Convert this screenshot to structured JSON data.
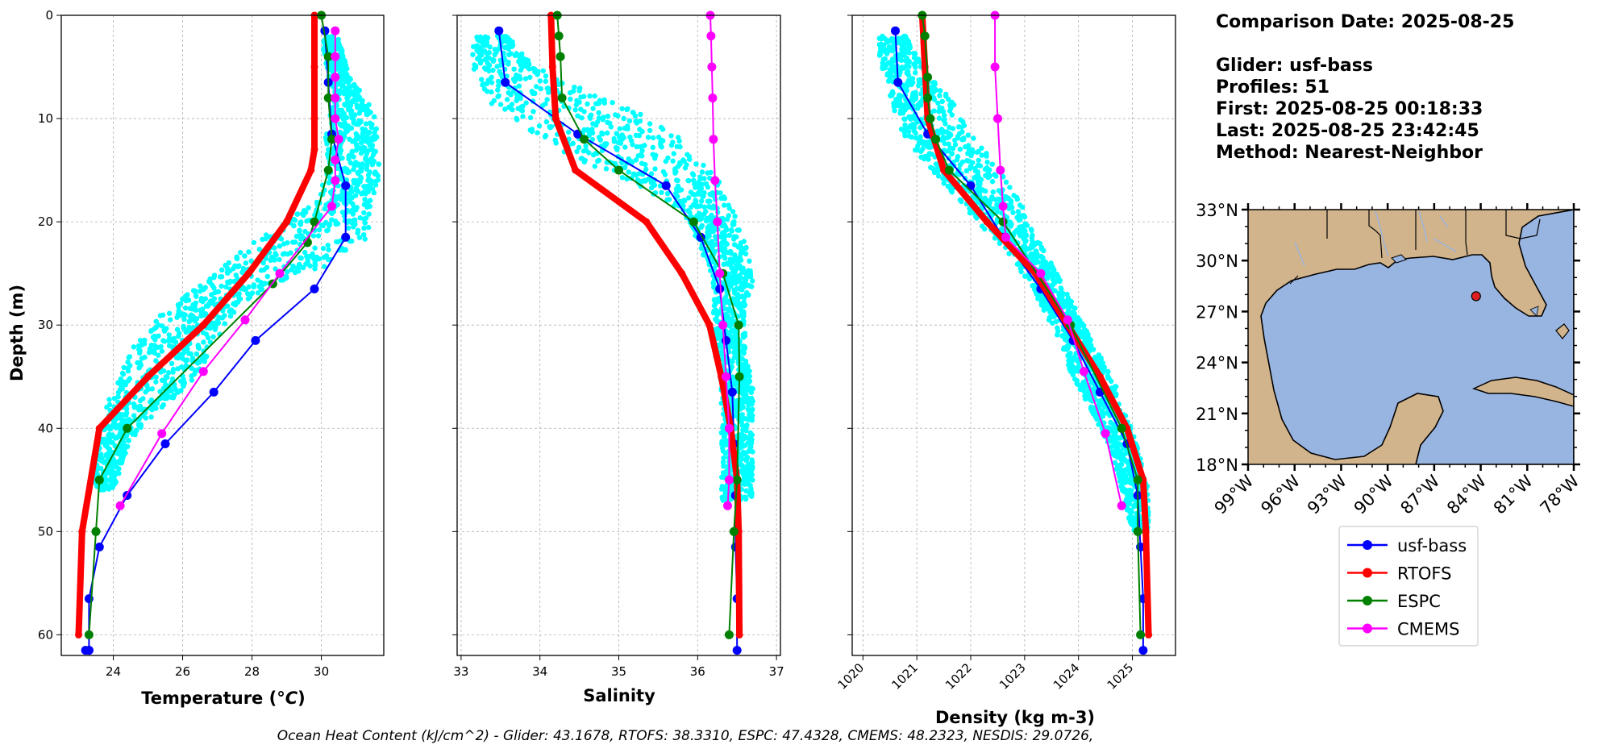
{
  "header": {
    "comparison_date": "Comparison Date: 2025-08-25",
    "glider": "Glider: usf-bass",
    "profiles": "Profiles: 51",
    "first": "First: 2025-08-25 00:18:33",
    "last": "Last: 2025-08-25 23:42:45",
    "method": "Method: Nearest-Neighbor"
  },
  "footer": "Ocean Heat Content (kJ/cm^2) - Glider: 43.1678,  RTOFS: 38.3310,  ESPC: 47.4328,  CMEMS: 48.2323,  NESDIS: 29.0726,",
  "colors": {
    "glider_scatter": "#00ffff",
    "usf_bass": "#0000ff",
    "rtofs": "#ff0000",
    "espc": "#008000",
    "cmems": "#ff00ff",
    "land": "#d2b48c",
    "ocean": "#98b4e0",
    "grid": "#b0b0b0"
  },
  "legend": [
    "usf-bass",
    "RTOFS",
    "ESPC",
    "CMEMS"
  ],
  "chart_data": [
    {
      "type": "line",
      "id": "temperature",
      "xlabel": "Temperature (°C)",
      "ylabel": "Depth (m)",
      "xlim": [
        22.5,
        31.8
      ],
      "ylim": [
        62,
        0
      ],
      "xticks": [
        24,
        26,
        28,
        30
      ],
      "yticks": [
        0,
        10,
        20,
        30,
        40,
        50,
        60
      ],
      "grid": true,
      "scatter_band": [
        [
          2,
          30.0,
          30.5
        ],
        [
          6,
          30.2,
          30.8
        ],
        [
          8,
          30.4,
          31.3
        ],
        [
          10,
          30.2,
          31.6
        ],
        [
          12,
          30.1,
          31.6
        ],
        [
          14,
          30.2,
          31.7
        ],
        [
          16,
          30.1,
          31.7
        ],
        [
          18,
          29.8,
          31.5
        ],
        [
          20,
          29.0,
          31.4
        ],
        [
          22,
          28.0,
          31.3
        ],
        [
          24,
          27.3,
          30.4
        ],
        [
          26,
          26.6,
          28.6
        ],
        [
          28,
          25.7,
          27.8
        ],
        [
          30,
          25.0,
          27.3
        ],
        [
          32,
          24.6,
          26.8
        ],
        [
          34,
          24.3,
          26.6
        ],
        [
          36,
          24.0,
          26.1
        ],
        [
          38,
          23.8,
          25.4
        ],
        [
          40,
          23.6,
          24.8
        ],
        [
          42,
          23.5,
          24.4
        ],
        [
          44,
          23.4,
          24.2
        ],
        [
          46,
          23.5,
          24.0
        ]
      ],
      "series": [
        {
          "name": "usf-bass",
          "x": [
            30.1,
            30.2,
            30.3,
            30.7,
            30.7,
            29.8,
            28.1,
            26.9,
            25.5,
            24.4,
            23.6,
            23.3,
            23.3,
            23.3,
            23.2
          ],
          "y": [
            1.5,
            6.5,
            11.5,
            16.5,
            21.5,
            26.5,
            31.5,
            36.5,
            41.5,
            46.5,
            51.5,
            56.5,
            61.5,
            61.5,
            61.5
          ]
        },
        {
          "name": "RTOFS",
          "x": [
            29.8,
            29.8,
            29.8,
            29.8,
            29.7,
            29.0,
            27.9,
            26.6,
            25.0,
            23.6,
            23.1,
            23.0
          ],
          "y": [
            0,
            5,
            10,
            13,
            15,
            20,
            25,
            30,
            35,
            40,
            50,
            60
          ]
        },
        {
          "name": "ESPC",
          "x": [
            30.0,
            30.2,
            30.2,
            30.3,
            30.2,
            29.8,
            29.6,
            28.6,
            24.4,
            23.6,
            23.5,
            23.3
          ],
          "y": [
            0,
            4,
            8,
            12,
            15,
            20,
            22,
            26,
            40,
            45,
            50,
            60
          ]
        },
        {
          "name": "CMEMS",
          "x": [
            30.4,
            30.4,
            30.4,
            30.4,
            30.4,
            30.5,
            30.4,
            30.4,
            30.3,
            28.8,
            27.8,
            26.6,
            25.4,
            24.2
          ],
          "y": [
            1.5,
            4,
            6,
            8,
            10,
            12,
            14,
            16,
            18.5,
            25,
            29.5,
            34.5,
            40.5,
            47.5
          ]
        }
      ]
    },
    {
      "type": "line",
      "id": "salinity",
      "xlabel": "Salinity",
      "xlim": [
        32.95,
        37.05
      ],
      "ylim": [
        62,
        0
      ],
      "xticks": [
        33,
        34,
        35,
        36,
        37
      ],
      "yticks": [
        0,
        10,
        20,
        30,
        40,
        50,
        60
      ],
      "grid": true,
      "scatter_band": [
        [
          2,
          33.2,
          33.6
        ],
        [
          4,
          33.1,
          33.8
        ],
        [
          6,
          33.2,
          34.2
        ],
        [
          8,
          33.3,
          34.8
        ],
        [
          10,
          33.6,
          35.4
        ],
        [
          12,
          34.0,
          35.8
        ],
        [
          14,
          34.5,
          36.0
        ],
        [
          16,
          35.1,
          36.3
        ],
        [
          18,
          35.6,
          36.4
        ],
        [
          20,
          35.9,
          36.5
        ],
        [
          22,
          36.0,
          36.6
        ],
        [
          24,
          36.1,
          36.7
        ],
        [
          26,
          36.2,
          36.7
        ],
        [
          28,
          36.2,
          36.6
        ],
        [
          30,
          36.2,
          36.6
        ],
        [
          32,
          36.2,
          36.6
        ],
        [
          36,
          36.3,
          36.7
        ],
        [
          40,
          36.3,
          36.7
        ],
        [
          44,
          36.3,
          36.7
        ],
        [
          47,
          36.3,
          36.7
        ]
      ],
      "series": [
        {
          "name": "usf-bass",
          "x": [
            33.48,
            33.56,
            34.48,
            35.6,
            36.04,
            36.28,
            36.36,
            36.44,
            36.46,
            36.48,
            36.48,
            36.5,
            36.5
          ],
          "y": [
            1.5,
            6.5,
            11.5,
            16.5,
            21.5,
            26.5,
            31.5,
            36.5,
            41.5,
            46.5,
            51.5,
            56.5,
            61.5
          ]
        },
        {
          "name": "RTOFS",
          "x": [
            34.14,
            34.16,
            34.2,
            34.45,
            35.35,
            35.8,
            36.15,
            36.3,
            36.42,
            36.5,
            36.52,
            36.53
          ],
          "y": [
            0,
            5,
            10,
            15,
            20,
            25,
            30,
            35,
            40,
            45,
            50,
            60
          ]
        },
        {
          "name": "ESPC",
          "x": [
            34.22,
            34.24,
            34.26,
            34.28,
            34.56,
            35.0,
            35.95,
            36.32,
            36.52,
            36.53,
            36.5,
            36.46,
            36.4
          ],
          "y": [
            0,
            2,
            4,
            8,
            12,
            15,
            20,
            25,
            30,
            35,
            45,
            50,
            60
          ]
        },
        {
          "name": "CMEMS",
          "x": [
            36.16,
            36.17,
            36.18,
            36.19,
            36.2,
            36.22,
            36.25,
            36.28,
            36.32,
            36.36,
            36.4,
            36.4,
            36.38
          ],
          "y": [
            0,
            2,
            5,
            8,
            12,
            16,
            20,
            25,
            30,
            35,
            40,
            45,
            47.5
          ]
        }
      ]
    },
    {
      "type": "line",
      "id": "density",
      "xlabel": "Density (kg m-3)",
      "xlim": [
        1019.8,
        1025.8
      ],
      "ylim": [
        62,
        0
      ],
      "xticks": [
        1020,
        1021,
        1022,
        1023,
        1024,
        1025
      ],
      "yticks": [
        0,
        10,
        20,
        30,
        40,
        50,
        60
      ],
      "grid": true,
      "scatter_band": [
        [
          2,
          1020.3,
          1020.8
        ],
        [
          4,
          1020.3,
          1021.0
        ],
        [
          6,
          1020.4,
          1021.3
        ],
        [
          8,
          1020.5,
          1021.6
        ],
        [
          10,
          1020.6,
          1021.9
        ],
        [
          12,
          1020.8,
          1022.1
        ],
        [
          14,
          1021.1,
          1022.4
        ],
        [
          16,
          1021.4,
          1022.7
        ],
        [
          18,
          1021.8,
          1022.9
        ],
        [
          20,
          1022.1,
          1023.1
        ],
        [
          22,
          1022.5,
          1023.3
        ],
        [
          24,
          1022.8,
          1023.5
        ],
        [
          26,
          1023.1,
          1023.7
        ],
        [
          28,
          1023.3,
          1023.9
        ],
        [
          30,
          1023.5,
          1024.1
        ],
        [
          32,
          1023.7,
          1024.3
        ],
        [
          34,
          1023.8,
          1024.5
        ],
        [
          36,
          1024.0,
          1024.7
        ],
        [
          38,
          1024.2,
          1024.8
        ],
        [
          40,
          1024.4,
          1025.0
        ],
        [
          42,
          1024.6,
          1025.1
        ],
        [
          44,
          1024.7,
          1025.2
        ],
        [
          46,
          1024.8,
          1025.3
        ],
        [
          48,
          1024.9,
          1025.3
        ],
        [
          50,
          1025.0,
          1025.3
        ]
      ],
      "series": [
        {
          "name": "usf-bass",
          "x": [
            1020.6,
            1020.65,
            1021.2,
            1022.0,
            1022.6,
            1023.3,
            1023.9,
            1024.4,
            1024.9,
            1025.1,
            1025.15,
            1025.2,
            1025.2
          ],
          "y": [
            1.5,
            6.5,
            11.5,
            16.5,
            21.5,
            26.5,
            31.5,
            36.5,
            41.5,
            46.5,
            51.5,
            56.5,
            61.5
          ]
        },
        {
          "name": "RTOFS",
          "x": [
            1021.1,
            1021.15,
            1021.2,
            1021.5,
            1022.3,
            1023.2,
            1023.8,
            1024.4,
            1024.9,
            1025.2,
            1025.25,
            1025.3
          ],
          "y": [
            0,
            5,
            10,
            15,
            20,
            25,
            30,
            35,
            40,
            45,
            50,
            60
          ]
        },
        {
          "name": "ESPC",
          "x": [
            1021.1,
            1021.15,
            1021.2,
            1021.2,
            1021.25,
            1021.35,
            1021.6,
            1022.6,
            1023.85,
            1024.8,
            1025.1,
            1025.1,
            1025.15
          ],
          "y": [
            0,
            2,
            6,
            8,
            10,
            12,
            15,
            20,
            30,
            40,
            45,
            50,
            60
          ]
        },
        {
          "name": "CMEMS",
          "x": [
            1022.45,
            1022.45,
            1022.5,
            1022.55,
            1022.6,
            1022.65,
            1023.3,
            1023.8,
            1024.1,
            1024.5,
            1024.8
          ],
          "y": [
            0,
            5,
            10,
            15,
            18.5,
            21.5,
            25,
            29.5,
            34.5,
            40.5,
            47.5
          ]
        }
      ]
    }
  ],
  "map": {
    "lat_labels": [
      "33°N",
      "30°N",
      "27°N",
      "24°N",
      "21°N",
      "18°N"
    ],
    "lon_labels": [
      "99°W",
      "96°W",
      "93°W",
      "90°W",
      "87°W",
      "84°W",
      "81°W",
      "78°W"
    ],
    "lat_range": [
      18,
      33
    ],
    "lon_range": [
      -99,
      -78
    ],
    "marker": {
      "lat": 27.9,
      "lon": -84.3
    }
  }
}
